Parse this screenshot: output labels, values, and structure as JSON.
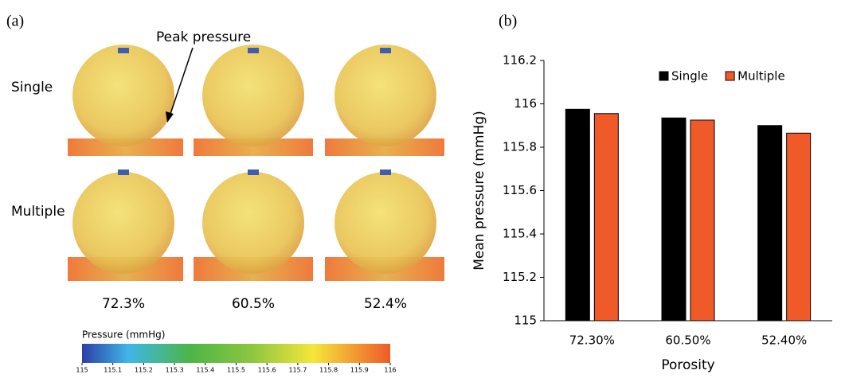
{
  "panel_a": {
    "label": "(a)",
    "annotation": "Peak pressure",
    "rows": [
      "Single",
      "Multiple"
    ],
    "columns": [
      "72.3%",
      "60.5%",
      "52.4%"
    ],
    "colorbar": {
      "label": "Pressure (mmHg)",
      "lim": [
        115,
        116
      ],
      "ticks": [
        115,
        115.1,
        115.2,
        115.3,
        115.4,
        115.5,
        115.6,
        115.7,
        115.8,
        115.9,
        116
      ]
    }
  },
  "chart_data": {
    "type": "bar",
    "panel_label": "(b)",
    "categories": [
      "72.30%",
      "60.50%",
      "52.40%"
    ],
    "series": [
      {
        "name": "Single",
        "color": "#000000",
        "values": [
          115.975,
          115.935,
          115.9
        ]
      },
      {
        "name": "Multiple",
        "color": "#f05a28",
        "values": [
          115.955,
          115.925,
          115.865
        ]
      }
    ],
    "y_label": "Mean pressure (mmHg)",
    "x_label": "Porosity",
    "ylim": [
      115,
      116.2
    ],
    "yticks": [
      115,
      115.2,
      115.4,
      115.6,
      115.8,
      116,
      116.2
    ],
    "legend": "top-right"
  }
}
